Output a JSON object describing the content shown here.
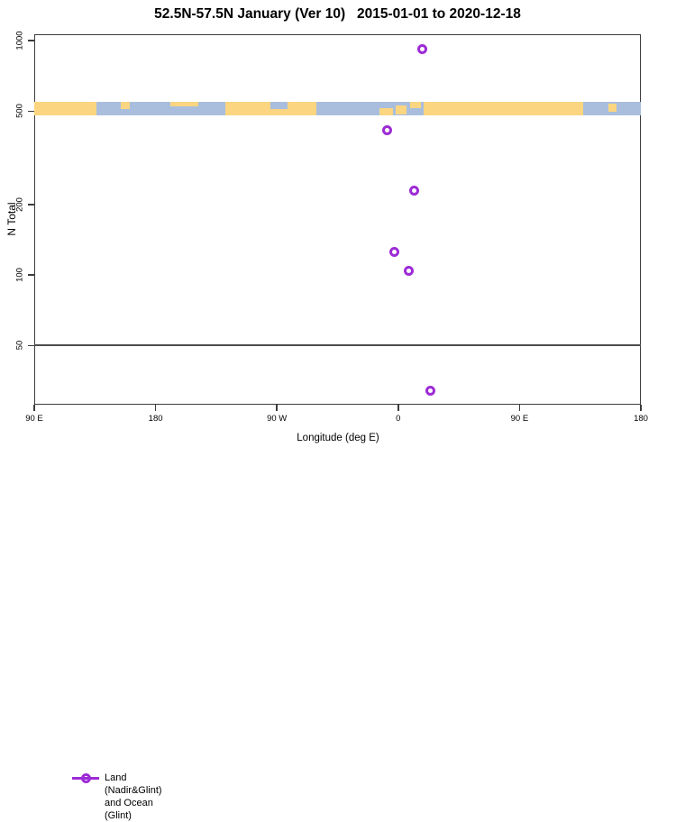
{
  "title": "52.5N-57.5N January (Ver 10)   2015-01-01 to 2020-12-18",
  "chart_data": {
    "type": "scatter",
    "title": "52.5N-57.5N January (Ver 10)   2015-01-01 to 2020-12-18",
    "xlabel": "Longitude (deg E)",
    "ylabel": "N Total",
    "grid": false,
    "x_axis": {
      "min": -270,
      "max": 180,
      "ticks": [
        {
          "value": -270,
          "label": "90 E"
        },
        {
          "value": -180,
          "label": "180"
        },
        {
          "value": -90,
          "label": "90 W"
        },
        {
          "value": 0,
          "label": "0"
        },
        {
          "value": 90,
          "label": "90 E"
        },
        {
          "value": 180,
          "label": "180"
        }
      ]
    },
    "y_axis": {
      "scale": "log",
      "min": 28,
      "max": 1064,
      "ticks": [
        {
          "value": 1000,
          "label": "1000"
        },
        {
          "value": 500,
          "label": "500"
        },
        {
          "value": 200,
          "label": "200"
        },
        {
          "value": 100,
          "label": "100"
        },
        {
          "value": 50,
          "label": "50"
        }
      ]
    },
    "reference_line_y": 50,
    "legend": {
      "label": "Land (Nadir&Glint) and Ocean (Glint)",
      "position": "bottom-left",
      "marker": "open-circle-on-line"
    },
    "series": [
      {
        "name": "Land (Nadir&Glint) and Ocean (Glint)",
        "marker": "open-circle",
        "color": "#9D2BD6",
        "points": [
          {
            "lon": 18,
            "n": 920
          },
          {
            "lon": -8,
            "n": 415
          },
          {
            "lon": 12,
            "n": 230
          },
          {
            "lon": -3,
            "n": 126
          },
          {
            "lon": 8,
            "n": 104
          },
          {
            "lon": 24,
            "n": 32
          }
        ]
      }
    ],
    "map_band": {
      "description": "land-ocean world map strip drawn across the plot near N=500",
      "center_value": 500,
      "colors": {
        "land": "#FBD580",
        "ocean": "#A9BEDD"
      },
      "segments": [
        {
          "from": -270,
          "to": -224,
          "type": "land"
        },
        {
          "from": -224,
          "to": -128,
          "type": "ocean"
        },
        {
          "from": -128,
          "to": -61,
          "type": "land"
        },
        {
          "from": -61,
          "to": 19,
          "type": "ocean"
        },
        {
          "from": 19,
          "to": 137,
          "type": "land"
        },
        {
          "from": 137,
          "to": 180,
          "type": "ocean"
        }
      ],
      "detail_patches": [
        {
          "from": -206,
          "to": -199,
          "type": "land",
          "v0": 0,
          "v1": 0.5
        },
        {
          "from": -169,
          "to": -148,
          "type": "land",
          "v0": 0,
          "v1": 0.3
        },
        {
          "from": -95,
          "to": -82,
          "type": "ocean",
          "v0": 0,
          "v1": 0.55
        },
        {
          "from": -14,
          "to": -4,
          "type": "land",
          "v0": 0.45,
          "v1": 1
        },
        {
          "from": -2,
          "to": 6,
          "type": "land",
          "v0": 0.25,
          "v1": 0.9
        },
        {
          "from": 9,
          "to": 17,
          "type": "land",
          "v0": 0,
          "v1": 0.45
        },
        {
          "from": 156,
          "to": 162,
          "type": "land",
          "v0": 0.15,
          "v1": 0.7
        }
      ]
    }
  }
}
